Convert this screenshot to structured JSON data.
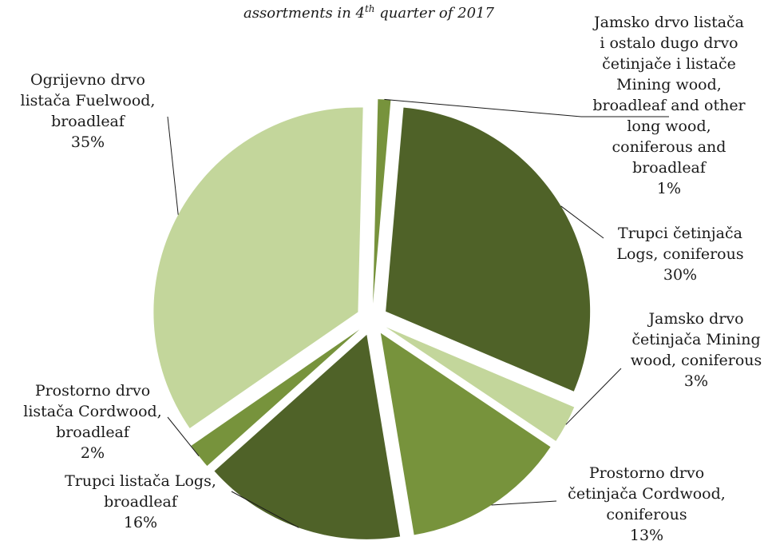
{
  "chart_data": {
    "type": "pie",
    "title_main": "assortments in 4",
    "title_sup": "th",
    "title_tail": " quarter of 2017",
    "exploded": true,
    "colors": {
      "dark_green": "#4f6228",
      "mid_green": "#77933c",
      "light_green": "#c3d69b"
    },
    "slices": [
      {
        "id": "jamsko-drvo-listaca",
        "value": 1,
        "percent_label": "1%",
        "label_lines": [
          "Jamsko drvo listača",
          "i ostalo dugo drvo",
          "četinjače i listače",
          "Mining wood,",
          "broadleaf and other",
          "long wood,",
          "coniferous and",
          "broadleaf"
        ],
        "color": "#77933c"
      },
      {
        "id": "trupci-cetinjaca",
        "value": 30,
        "percent_label": "30%",
        "label_lines": [
          "Trupci četinjača",
          "Logs, coniferous"
        ],
        "color": "#4f6228"
      },
      {
        "id": "jamsko-drvo-cetinjaca",
        "value": 3,
        "percent_label": "3%",
        "label_lines": [
          "Jamsko drvo",
          "četinjača Mining",
          "wood, coniferous"
        ],
        "color": "#c3d69b"
      },
      {
        "id": "prostorno-drvo-cetinjaca",
        "value": 13,
        "percent_label": "13%",
        "label_lines": [
          "Prostorno drvo",
          "četinjača Cordwood,",
          "coniferous"
        ],
        "color": "#77933c"
      },
      {
        "id": "trupci-listaca",
        "value": 16,
        "percent_label": "16%",
        "label_lines": [
          "Trupci listača  Logs,",
          "broadleaf"
        ],
        "color": "#4f6228"
      },
      {
        "id": "prostorno-drvo-listaca",
        "value": 2,
        "percent_label": "2%",
        "label_lines": [
          "Prostorno drvo",
          "listača Cordwood,",
          "broadleaf"
        ],
        "color": "#77933c"
      },
      {
        "id": "ogrijevno-drvo-listaca",
        "value": 35,
        "percent_label": "35%",
        "label_lines": [
          "Ogrijevno drvo",
          "listača  Fuelwood,",
          "broadleaf"
        ],
        "color": "#c3d69b"
      }
    ]
  }
}
